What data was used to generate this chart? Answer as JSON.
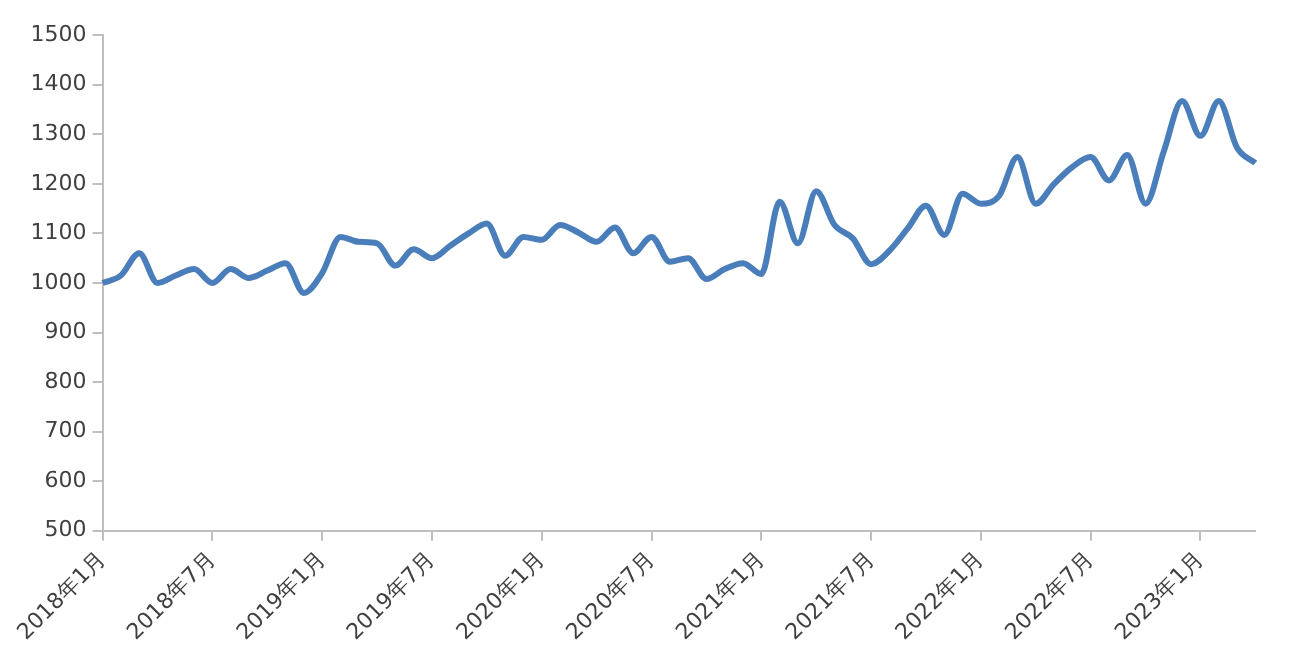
{
  "chart_data": {
    "type": "line",
    "categories": [
      "2018年1月",
      null,
      null,
      null,
      null,
      null,
      "2018年7月",
      null,
      null,
      null,
      null,
      null,
      "2019年1月",
      null,
      null,
      null,
      null,
      null,
      "2019年7月",
      null,
      null,
      null,
      null,
      null,
      "2020年1月",
      null,
      null,
      null,
      null,
      null,
      "2020年7月",
      null,
      null,
      null,
      null,
      null,
      "2021年1月",
      null,
      null,
      null,
      null,
      null,
      "2021年7月",
      null,
      null,
      null,
      null,
      null,
      "2022年1月",
      null,
      null,
      null,
      null,
      null,
      "2022年7月",
      null,
      null,
      null,
      null,
      null,
      "2023年1月",
      null,
      null,
      null
    ],
    "series": [
      {
        "color": "#4a7ebb",
        "values": [
          1000,
          1015,
          1060,
          1000,
          1015,
          1028,
          1000,
          1028,
          1010,
          1025,
          1040,
          980,
          1020,
          1093,
          1083,
          1080,
          1035,
          1068,
          1050,
          1075,
          1100,
          1120,
          1055,
          1093,
          1087,
          1117,
          1102,
          1083,
          1112,
          1060,
          1093,
          1043,
          1050,
          1008,
          1028,
          1040,
          1018,
          1164,
          1080,
          1185,
          1117,
          1090,
          1038,
          1065,
          1110,
          1156,
          1097,
          1180,
          1160,
          1176,
          1254,
          1160,
          1200,
          1234,
          1254,
          1207,
          1258,
          1160,
          1266,
          1367,
          1297,
          1367,
          1273,
          1242
        ]
      }
    ],
    "ylim": [
      500,
      1500
    ],
    "yticks": [
      500,
      600,
      700,
      800,
      900,
      1000,
      1100,
      1200,
      1300,
      1400,
      1500
    ]
  }
}
